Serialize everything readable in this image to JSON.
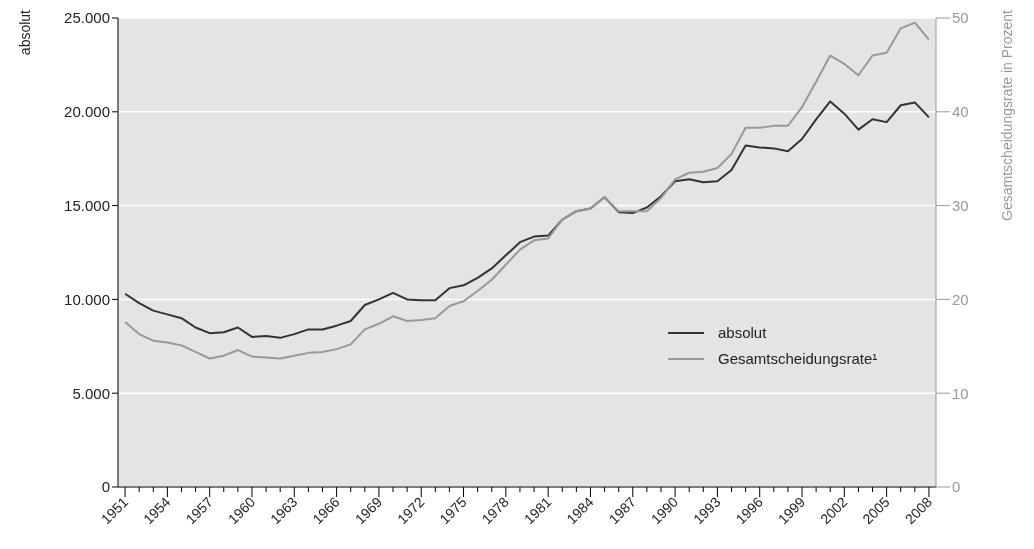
{
  "chart_data": {
    "type": "line",
    "ylabel": "absolut",
    "y2label": "Gesamtscheidungsrate in Prozent",
    "x": [
      1951,
      1952,
      1953,
      1954,
      1955,
      1956,
      1957,
      1958,
      1959,
      1960,
      1961,
      1962,
      1963,
      1964,
      1965,
      1966,
      1967,
      1968,
      1969,
      1970,
      1971,
      1972,
      1973,
      1974,
      1975,
      1976,
      1977,
      1978,
      1979,
      1980,
      1981,
      1982,
      1983,
      1984,
      1985,
      1986,
      1987,
      1988,
      1989,
      1990,
      1991,
      1992,
      1993,
      1994,
      1995,
      1996,
      1997,
      1998,
      1999,
      2000,
      2001,
      2002,
      2003,
      2004,
      2005,
      2006,
      2007,
      2008
    ],
    "series": [
      {
        "name": "absolut",
        "color": "#333333",
        "values": [
          10300,
          9800,
          9400,
          9200,
          9000,
          8500,
          8200,
          8250,
          8500,
          8000,
          8050,
          7950,
          8150,
          8400,
          8400,
          8600,
          8850,
          9700,
          10000,
          10350,
          10000,
          9950,
          9950,
          10600,
          10750,
          11150,
          11650,
          12350,
          13050,
          13350,
          13400,
          14250,
          14700,
          14850,
          15450,
          14650,
          14600,
          14900,
          15500,
          16300,
          16400,
          16250,
          16300,
          16900,
          18200,
          18100,
          18050,
          17900,
          18550,
          19600,
          20550,
          19900,
          19050,
          19600,
          19450,
          20350,
          20500,
          19700
        ]
      },
      {
        "name": "Gesamtscheidungsrate¹",
        "color": "#999999",
        "axis": "y2",
        "values": [
          17.6,
          16.3,
          15.6,
          15.4,
          15.1,
          14.4,
          13.7,
          14.0,
          14.6,
          13.9,
          13.8,
          13.7,
          14.0,
          14.3,
          14.4,
          14.7,
          15.2,
          16.8,
          17.4,
          18.2,
          17.7,
          17.8,
          18.0,
          19.3,
          19.8,
          20.9,
          22.1,
          23.7,
          25.3,
          26.3,
          26.5,
          28.5,
          29.4,
          29.7,
          30.9,
          29.4,
          29.4,
          29.4,
          30.8,
          32.8,
          33.5,
          33.6,
          34.0,
          35.5,
          38.3,
          38.3,
          38.5,
          38.5,
          40.5,
          43.2,
          46.0,
          45.1,
          43.9,
          46.0,
          46.3,
          48.9,
          49.5,
          47.7
        ]
      }
    ],
    "xlim": [
      1950.5,
      2008.5
    ],
    "xticks": [
      1951,
      {
        "value": 1952,
        "label": null
      },
      {
        "value": 1953,
        "label": null
      },
      1954,
      {
        "value": 1955,
        "label": null
      },
      {
        "value": 1956,
        "label": null
      },
      1957,
      {
        "value": 1958,
        "label": null
      },
      {
        "value": 1959,
        "label": null
      },
      1960,
      {
        "value": 1961,
        "label": null
      },
      {
        "value": 1962,
        "label": null
      },
      1963,
      {
        "value": 1964,
        "label": null
      },
      {
        "value": 1965,
        "label": null
      },
      1966,
      {
        "value": 1967,
        "label": null
      },
      {
        "value": 1968,
        "label": null
      },
      1969,
      {
        "value": 1970,
        "label": null
      },
      {
        "value": 1971,
        "label": null
      },
      1972,
      {
        "value": 1973,
        "label": null
      },
      {
        "value": 1974,
        "label": null
      },
      1975,
      {
        "value": 1976,
        "label": null
      },
      {
        "value": 1977,
        "label": null
      },
      1978,
      {
        "value": 1979,
        "label": null
      },
      {
        "value": 1980,
        "label": null
      },
      1981,
      {
        "value": 1982,
        "label": null
      },
      {
        "value": 1983,
        "label": null
      },
      1984,
      {
        "value": 1985,
        "label": null
      },
      {
        "value": 1986,
        "label": null
      },
      1987,
      {
        "value": 1988,
        "label": null
      },
      {
        "value": 1989,
        "label": null
      },
      1990,
      {
        "value": 1991,
        "label": null
      },
      {
        "value": 1992,
        "label": null
      },
      1993,
      {
        "value": 1994,
        "label": null
      },
      {
        "value": 1995,
        "label": null
      },
      1996,
      {
        "value": 1997,
        "label": null
      },
      {
        "value": 1998,
        "label": null
      },
      1999,
      {
        "value": 2000,
        "label": null
      },
      {
        "value": 2001,
        "label": null
      },
      2002,
      {
        "value": 2003,
        "label": null
      },
      {
        "value": 2004,
        "label": null
      },
      2005,
      {
        "value": 2006,
        "label": null
      },
      {
        "value": 2007,
        "label": null
      },
      2008
    ],
    "ylim": [
      0,
      25000
    ],
    "yticks": [
      0,
      {
        "value": 5000,
        "label": "5.000"
      },
      {
        "value": 10000,
        "label": "10.000"
      },
      {
        "value": 15000,
        "label": "15.000"
      },
      {
        "value": 20000,
        "label": "20.000"
      },
      {
        "value": 25000,
        "label": "25.000"
      }
    ],
    "y2lim": [
      0,
      50
    ],
    "y2ticks": [
      0,
      10,
      20,
      30,
      40,
      50
    ],
    "grid": "y",
    "legend": "right",
    "marker": "none",
    "line_style": "solid"
  }
}
